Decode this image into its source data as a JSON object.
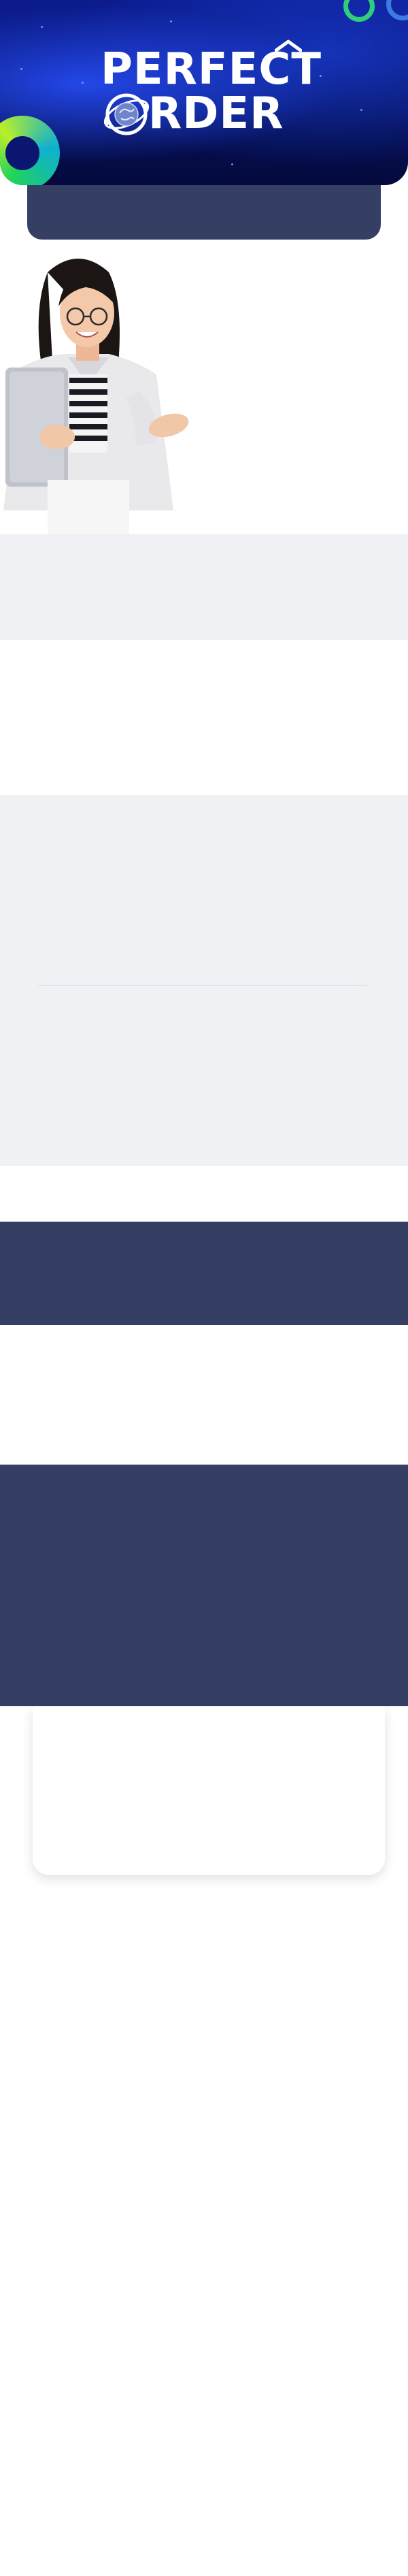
{
  "hero": {
    "brand_line1": "PERFECT",
    "brand_line2": "RDER",
    "icons": [
      "logo-emblem-icon",
      "house-roof-icon"
    ],
    "colors": {
      "background": "#06115e",
      "glow": "#2850ff",
      "orb_green": "#1fd35a",
      "orb_lime": "#b8ef2a",
      "ring_blue": "#3c7ce0"
    }
  },
  "colors": {
    "navy": "#353e63",
    "light_gray": "#f0f1f5",
    "white": "#ffffff"
  }
}
